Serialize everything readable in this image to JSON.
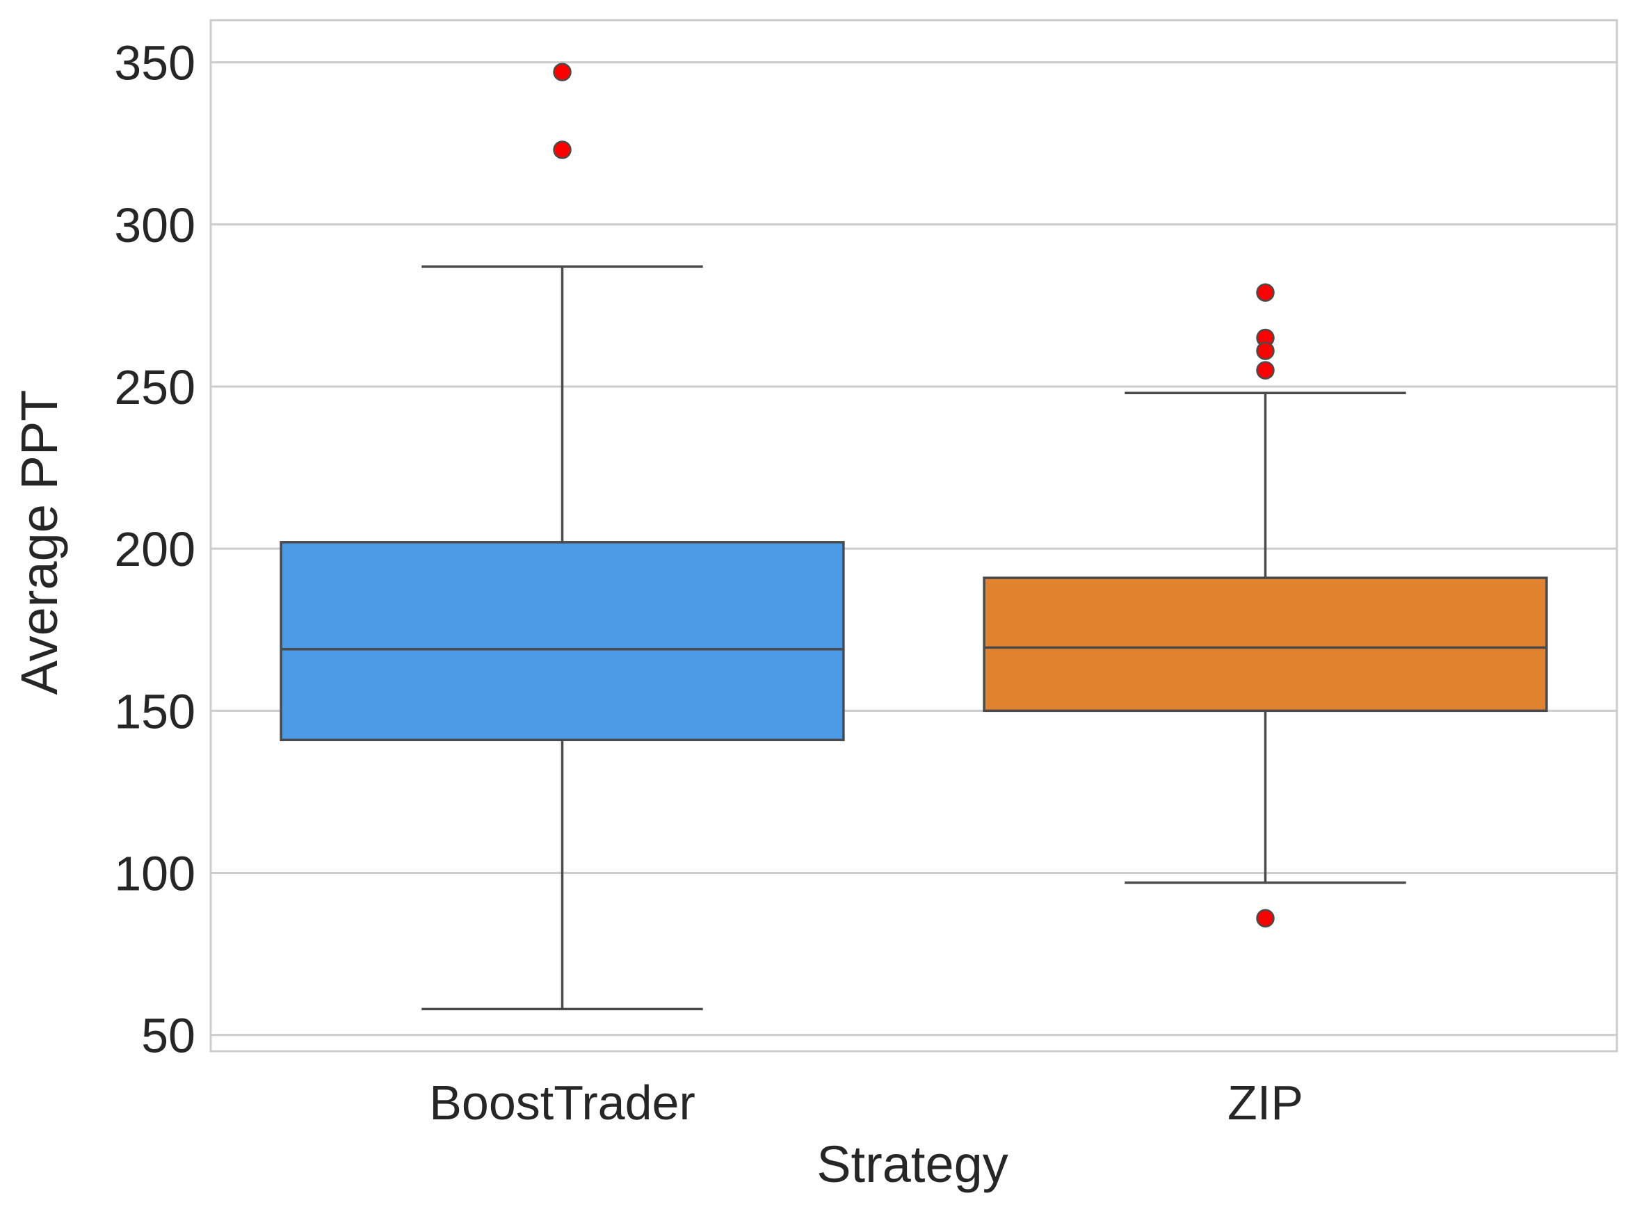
{
  "chart_data": {
    "type": "box",
    "title": "",
    "xlabel": "Strategy",
    "ylabel": "Average PPT",
    "ylim": [
      45,
      363
    ],
    "yticks": [
      50,
      100,
      150,
      200,
      250,
      300,
      350
    ],
    "grid": "horizontal",
    "categories": [
      "BoostTrader",
      "ZIP"
    ],
    "boxes": [
      {
        "category": "BoostTrader",
        "color": "#4c9be6",
        "whisker_low": 58,
        "q1": 141,
        "median": 169,
        "q3": 202,
        "whisker_high": 287,
        "outliers": [
          347,
          323
        ]
      },
      {
        "category": "ZIP",
        "color": "#e0822e",
        "whisker_low": 97,
        "q1": 150,
        "median": 169.5,
        "q3": 191,
        "whisker_high": 248,
        "outliers": [
          279,
          265,
          261,
          255,
          86
        ]
      }
    ],
    "outlier_color": "#ff0000",
    "line_color": "#4a4a4a",
    "grid_color": "#cccccc"
  }
}
